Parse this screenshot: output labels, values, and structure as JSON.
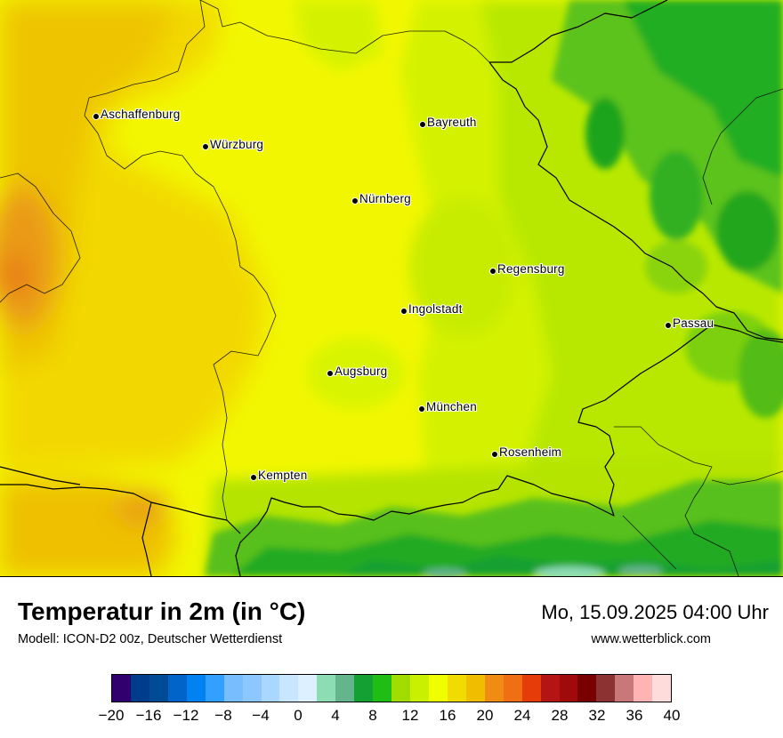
{
  "map": {
    "cities": [
      {
        "name": "Aschaffenburg"
      },
      {
        "name": "Würzburg"
      },
      {
        "name": "Bayreuth"
      },
      {
        "name": "Nürnberg"
      },
      {
        "name": "Regensburg"
      },
      {
        "name": "Ingolstadt"
      },
      {
        "name": "Passau"
      },
      {
        "name": "Augsburg"
      },
      {
        "name": "München"
      },
      {
        "name": "Rosenheim"
      },
      {
        "name": "Kempten"
      }
    ]
  },
  "header": {
    "title": "Temperatur in 2m (in °C)",
    "model": "Modell: ICON-D2 00z, Deutscher Wetterdienst",
    "datetime": "Mo, 15.09.2025 04:00 Uhr",
    "website": "www.wetterblick.com"
  },
  "legend": {
    "colors": [
      "#32006e",
      "#003c8c",
      "#004b96",
      "#0064c8",
      "#0082f0",
      "#32a0ff",
      "#78beff",
      "#8cc8ff",
      "#aad7ff",
      "#c8e6ff",
      "#dcf0ff",
      "#8cdcb4",
      "#64b48c",
      "#14a032",
      "#1ebe14",
      "#a0dc00",
      "#c8f000",
      "#f0ff00",
      "#f0dc00",
      "#f0be00",
      "#f08c14",
      "#f06e14",
      "#e63c0a",
      "#b41414",
      "#a00a0a",
      "#780000",
      "#8c3232",
      "#c87878",
      "#ffb4b4",
      "#ffdcdc"
    ],
    "ticks": [
      "−20",
      "−16",
      "−12",
      "−8",
      "−4",
      "0",
      "4",
      "8",
      "12",
      "16",
      "20",
      "24",
      "28",
      "32",
      "36",
      "40"
    ]
  }
}
